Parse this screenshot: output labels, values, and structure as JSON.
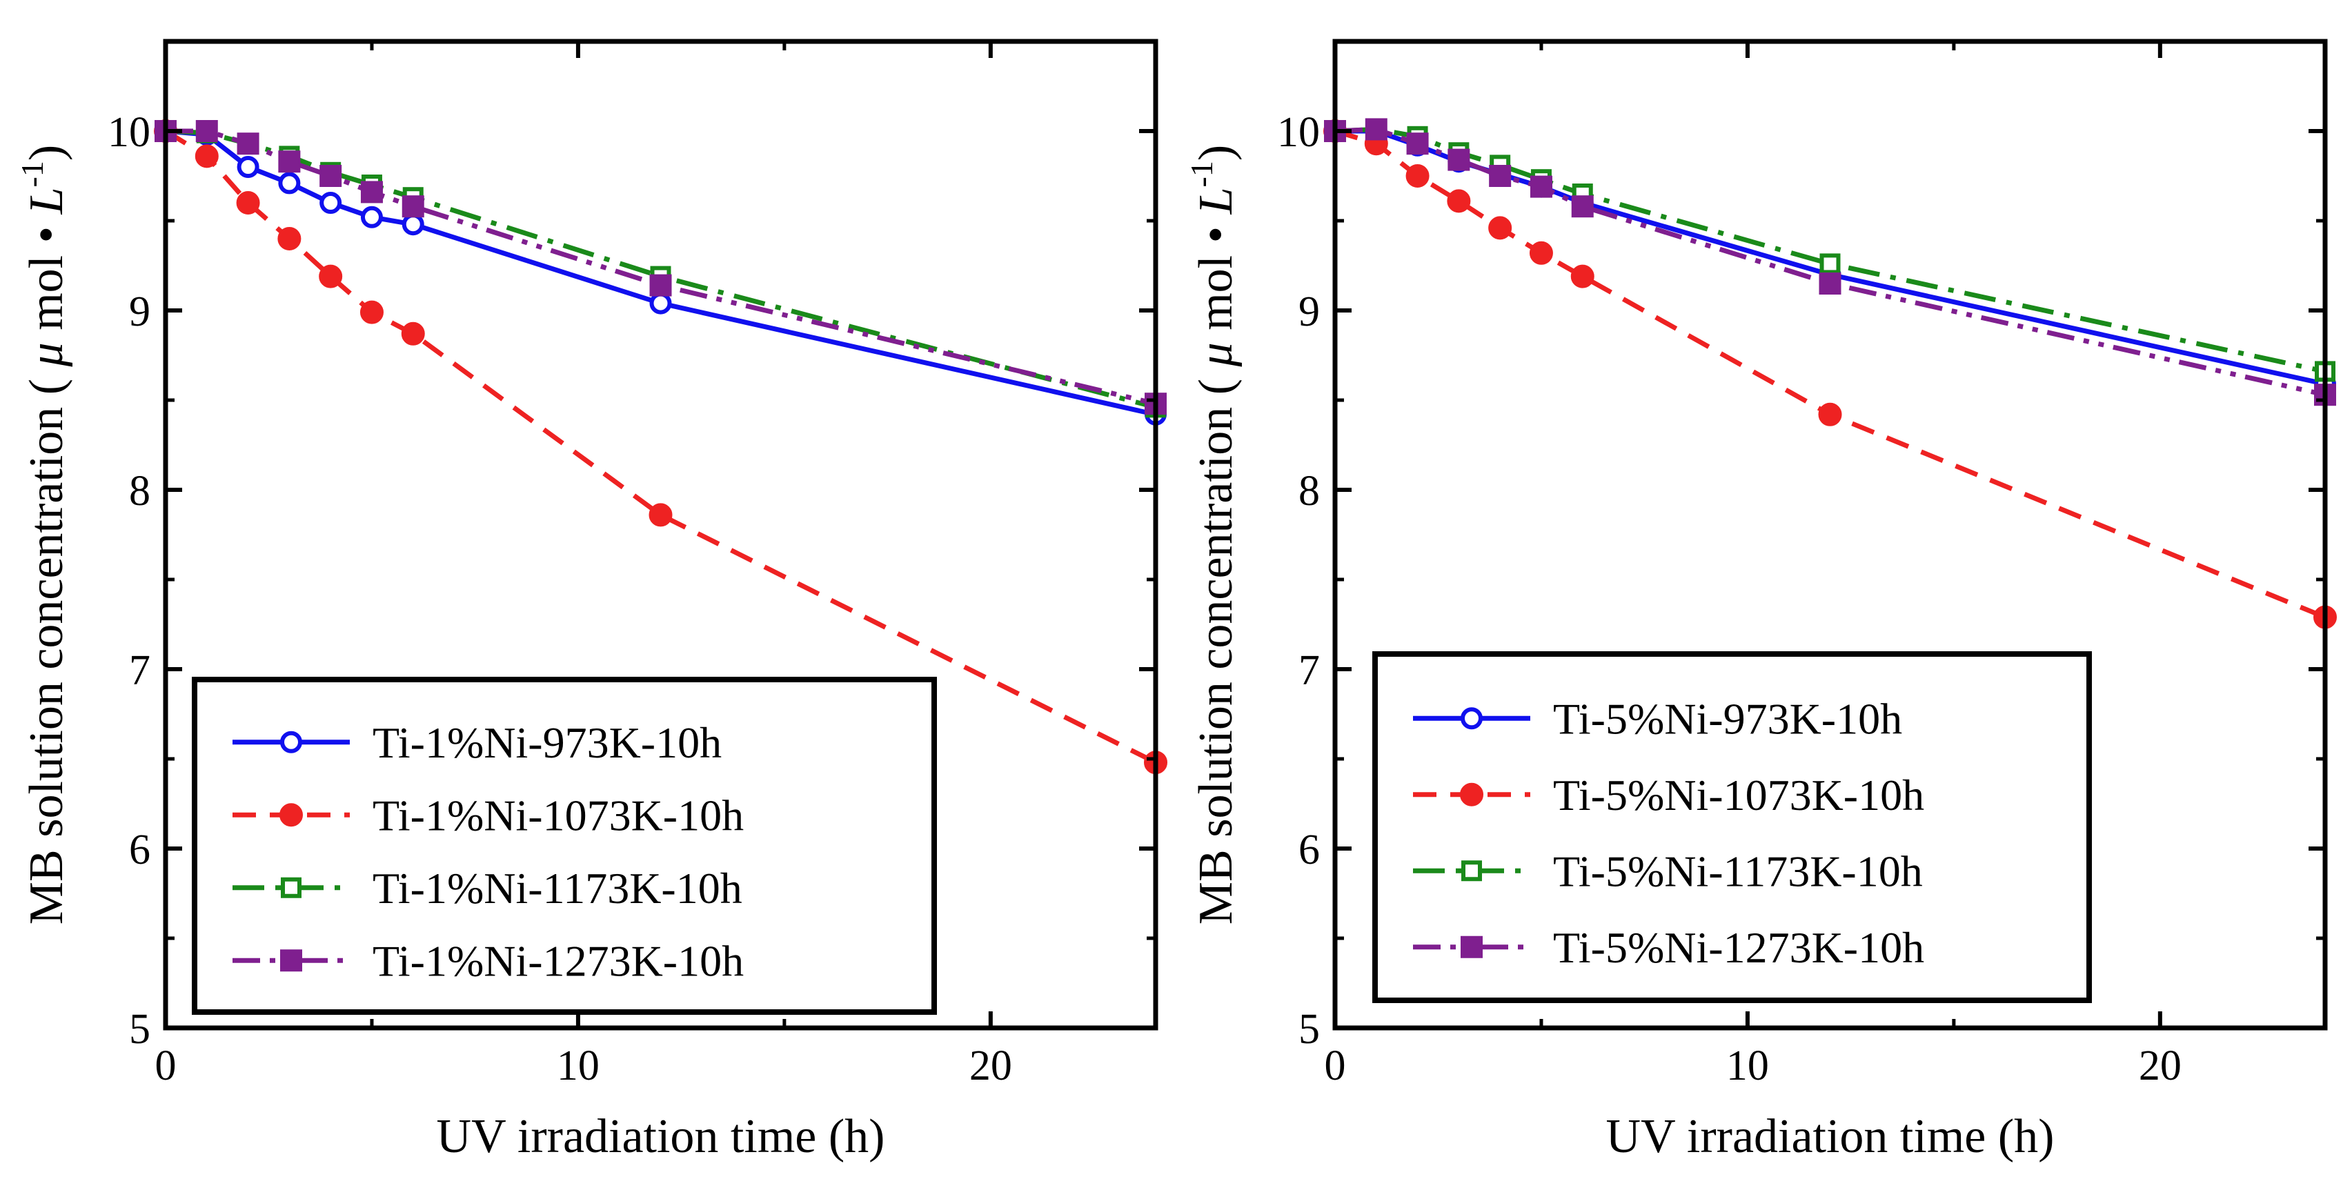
{
  "chart_data": [
    {
      "type": "line",
      "title": "",
      "xlabel": "UV irradiation time (h)",
      "ylabel_main": "MB solution concentration ( ",
      "ylabel_mu": "μ",
      "ylabel_mid": " mol • ",
      "ylabel_L": "L",
      "ylabel_exp": "-1",
      "ylabel_close": ")",
      "xlim": [
        0,
        24
      ],
      "ylim": [
        5,
        10.5
      ],
      "xticks": [
        "0",
        "10",
        "20"
      ],
      "xtick_values": [
        0,
        10,
        20
      ],
      "yticks": [
        "5",
        "6",
        "7",
        "8",
        "9",
        "10"
      ],
      "ytick_values": [
        5,
        6,
        7,
        8,
        9,
        10
      ],
      "legend_position": "bottom-left",
      "series": [
        {
          "name": "Ti-1%Ni-973K-10h",
          "color": "#1010ee",
          "dash": "solid",
          "marker": "open-circle",
          "x": [
            0,
            1,
            2,
            3,
            4,
            5,
            6,
            12,
            24
          ],
          "values": [
            10.0,
            9.98,
            9.8,
            9.71,
            9.6,
            9.52,
            9.48,
            9.04,
            8.42
          ]
        },
        {
          "name": "Ti-1%Ni-1073K-10h",
          "color": "#ee2222",
          "dash": "dashed",
          "marker": "filled-circle",
          "x": [
            0,
            1,
            2,
            3,
            4,
            5,
            6,
            12,
            24
          ],
          "values": [
            10.0,
            9.86,
            9.6,
            9.4,
            9.19,
            8.99,
            8.87,
            7.86,
            6.48
          ]
        },
        {
          "name": "Ti-1%Ni-1173K-10h",
          "color": "#1a8a1a",
          "dash": "dashdot",
          "marker": "open-square",
          "x": [
            0,
            1,
            2,
            3,
            4,
            5,
            6,
            12,
            24
          ],
          "values": [
            10.0,
            9.99,
            9.93,
            9.86,
            9.77,
            9.7,
            9.63,
            9.19,
            8.46
          ]
        },
        {
          "name": "Ti-1%Ni-1273K-10h",
          "color": "#7f1f8f",
          "dash": "dashdotdot",
          "marker": "filled-square",
          "x": [
            0,
            1,
            2,
            3,
            4,
            5,
            6,
            12,
            24
          ],
          "values": [
            10.0,
            10.0,
            9.93,
            9.83,
            9.75,
            9.66,
            9.58,
            9.14,
            8.48
          ]
        }
      ]
    },
    {
      "type": "line",
      "title": "",
      "xlabel": "UV irradiation time (h)",
      "ylabel_main": "MB solution concentration ( ",
      "ylabel_mu": "μ",
      "ylabel_mid": " mol • ",
      "ylabel_L": "L",
      "ylabel_exp": "-1",
      "ylabel_close": ")",
      "xlim": [
        0,
        24
      ],
      "ylim": [
        5,
        10.5
      ],
      "xticks": [
        "0",
        "10",
        "20"
      ],
      "xtick_values": [
        0,
        10,
        20
      ],
      "yticks": [
        "5",
        "6",
        "7",
        "8",
        "9",
        "10"
      ],
      "ytick_values": [
        5,
        6,
        7,
        8,
        9,
        10
      ],
      "legend_position": "bottom-left",
      "series": [
        {
          "name": "Ti-5%Ni-973K-10h",
          "color": "#1010ee",
          "dash": "solid",
          "marker": "open-circle",
          "x": [
            0,
            1,
            2,
            3,
            4,
            5,
            6,
            12,
            24
          ],
          "values": [
            10.0,
            10.0,
            9.92,
            9.83,
            9.76,
            9.69,
            9.6,
            9.2,
            8.59
          ]
        },
        {
          "name": "Ti-5%Ni-1073K-10h",
          "color": "#ee2222",
          "dash": "dashed",
          "marker": "filled-circle",
          "x": [
            0,
            1,
            2,
            3,
            4,
            5,
            6,
            12,
            24
          ],
          "values": [
            10.0,
            9.93,
            9.75,
            9.61,
            9.46,
            9.32,
            9.19,
            8.42,
            7.29
          ]
        },
        {
          "name": "Ti-5%Ni-1173K-10h",
          "color": "#1a8a1a",
          "dash": "dashdot",
          "marker": "open-square",
          "x": [
            0,
            1,
            2,
            3,
            4,
            5,
            6,
            12,
            24
          ],
          "values": [
            10.0,
            10.01,
            9.97,
            9.88,
            9.81,
            9.73,
            9.65,
            9.26,
            8.66
          ]
        },
        {
          "name": "Ti-5%Ni-1273K-10h",
          "color": "#7f1f8f",
          "dash": "dashdotdot",
          "marker": "filled-square",
          "x": [
            0,
            1,
            2,
            3,
            4,
            5,
            6,
            12,
            24
          ],
          "values": [
            10.0,
            10.01,
            9.93,
            9.84,
            9.75,
            9.69,
            9.58,
            9.15,
            8.53
          ]
        }
      ]
    }
  ]
}
